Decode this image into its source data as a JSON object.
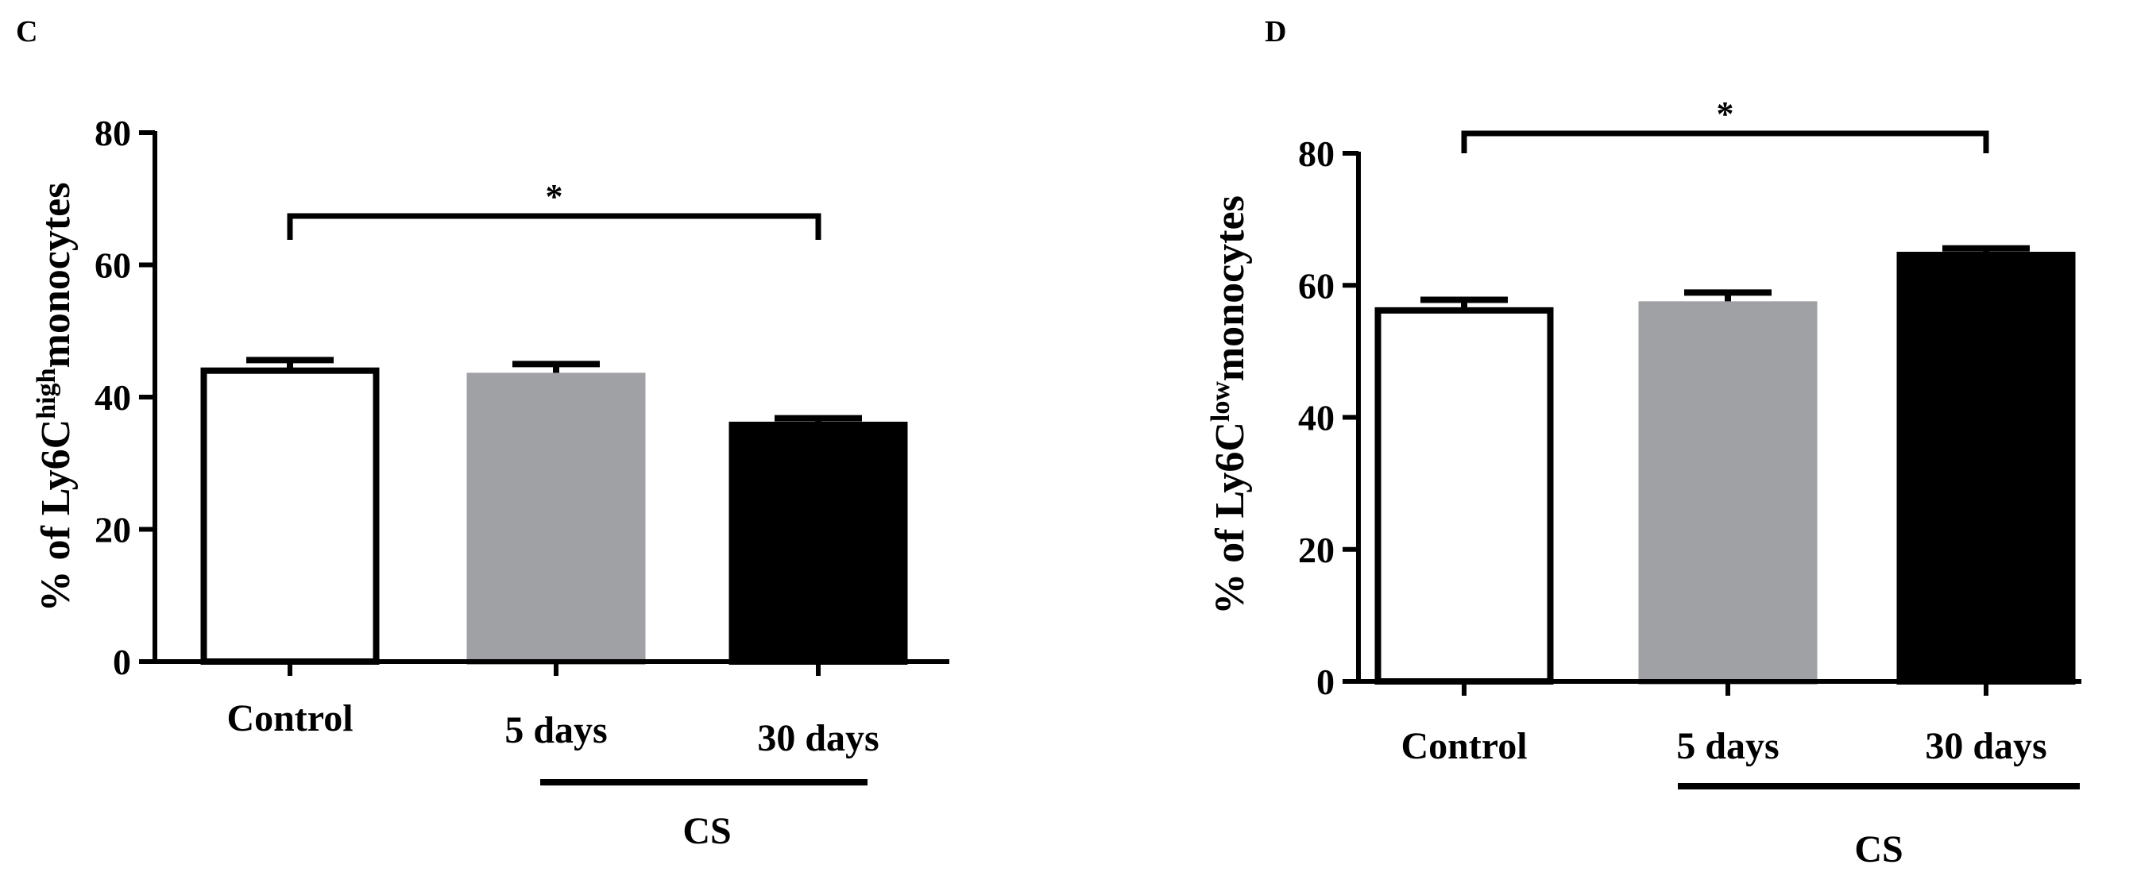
{
  "colors": {
    "control": "#ffffff",
    "day5": "#a0a1a4",
    "day30": "#000000",
    "axis": "#000000"
  },
  "chart_data": [
    {
      "panel": "C",
      "type": "bar",
      "ylabel_prefix": "% of Ly6C",
      "ylabel_sup": "high",
      "ylabel_suffix": "monocytes",
      "ylim": [
        0,
        80
      ],
      "yticks": [
        0,
        20,
        40,
        60,
        80
      ],
      "categories": [
        "Control",
        "5 days",
        "30 days"
      ],
      "values": [
        44,
        43.2,
        35.8
      ],
      "errors": [
        1.6,
        1.8,
        1.0
      ],
      "group_label": "CS",
      "group_span": [
        "5 days",
        "30 days"
      ],
      "significance": {
        "from": "Control",
        "to": "30 days",
        "label": "*"
      }
    },
    {
      "panel": "D",
      "type": "bar",
      "ylabel_prefix": "% of Ly6C",
      "ylabel_sup": "low",
      "ylabel_suffix": "monocytes",
      "ylim": [
        0,
        80
      ],
      "yticks": [
        0,
        20,
        40,
        60,
        80
      ],
      "categories": [
        "Control",
        "5 days",
        "30 days"
      ],
      "values": [
        56.2,
        57.1,
        64.6
      ],
      "errors": [
        1.6,
        1.8,
        1.0
      ],
      "group_label": "CS",
      "group_span": [
        "5 days",
        "30 days"
      ],
      "significance": {
        "from": "Control",
        "to": "30 days",
        "label": "*"
      }
    }
  ]
}
